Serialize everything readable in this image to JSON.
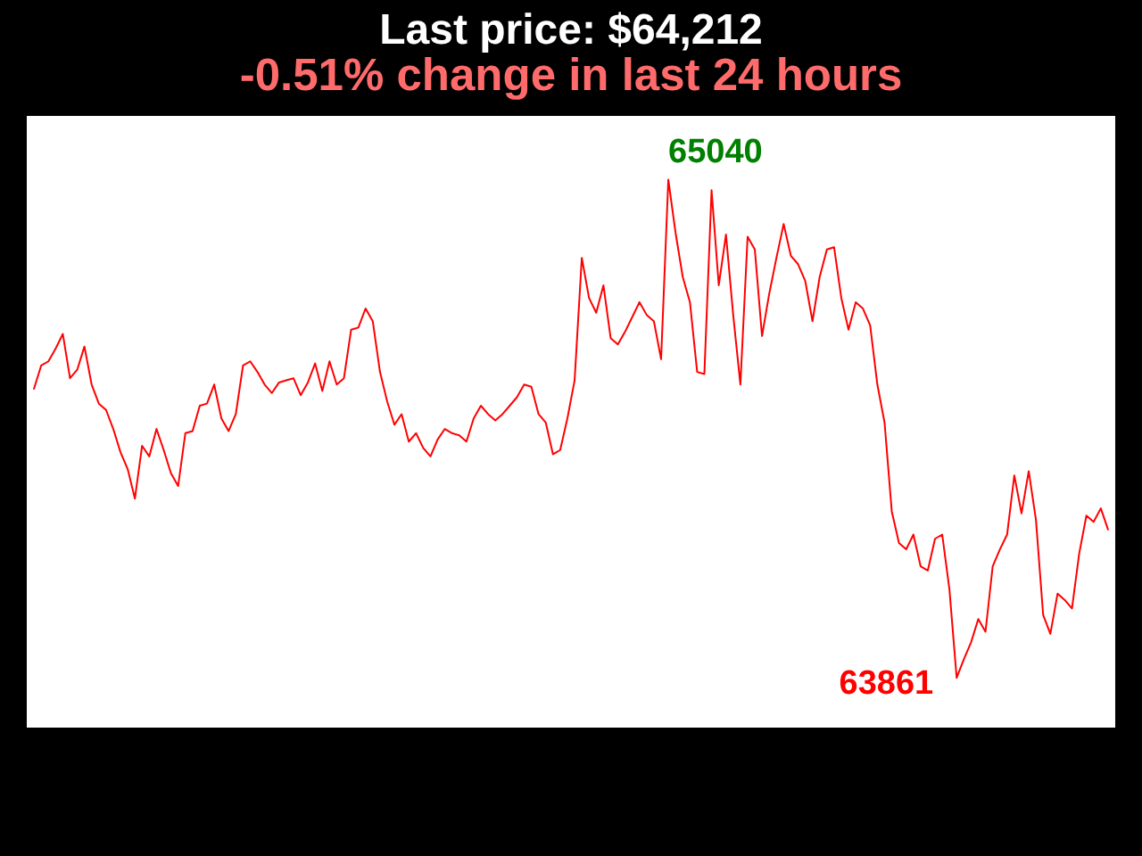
{
  "chart_data": {
    "type": "line",
    "title": "Last price: $64,212",
    "subtitle": "-0.51% change in last 24 hours",
    "categories": [
      null,
      null,
      null,
      null,
      null,
      null,
      null,
      null,
      null,
      null,
      null,
      null,
      null,
      null,
      null,
      null,
      null,
      null,
      null,
      null,
      null,
      null,
      null,
      null,
      null,
      null,
      null,
      null,
      null,
      null,
      null,
      null,
      null,
      null,
      null,
      null,
      null,
      null,
      null,
      null,
      null,
      null,
      null,
      null,
      null,
      null,
      null,
      null,
      null,
      null,
      null,
      null,
      null,
      null,
      null,
      null,
      null,
      null,
      null,
      null,
      null,
      null,
      null,
      null,
      null,
      null,
      null,
      null,
      null,
      null,
      null,
      null,
      null,
      null,
      null,
      null,
      null,
      null,
      null,
      null,
      null,
      null,
      null,
      null,
      null,
      null,
      null,
      null,
      null,
      null,
      null,
      null,
      null,
      null,
      null,
      null,
      null,
      null,
      null,
      null,
      null,
      null,
      null,
      null,
      null,
      null,
      null,
      null,
      null,
      null,
      null,
      null,
      null,
      null,
      null,
      null,
      null,
      null,
      null,
      null,
      null,
      null,
      null,
      null,
      null,
      null,
      null,
      null,
      null,
      null,
      null,
      null,
      null,
      null,
      null,
      null,
      null,
      null,
      null,
      null,
      null,
      null,
      null,
      null,
      null,
      null,
      null,
      null,
      null,
      null
    ],
    "values": [
      64545,
      64600,
      64610,
      64640,
      64675,
      64570,
      64590,
      64645,
      64555,
      64510,
      64495,
      64450,
      64395,
      64355,
      64285,
      64410,
      64385,
      64450,
      64400,
      64345,
      64315,
      64440,
      64445,
      64505,
      64510,
      64555,
      64475,
      64445,
      64485,
      64600,
      64610,
      64585,
      64555,
      64535,
      64560,
      64565,
      64570,
      64530,
      64560,
      64605,
      64540,
      64610,
      64555,
      64570,
      64685,
      64690,
      64735,
      64705,
      64585,
      64515,
      64460,
      64485,
      64420,
      64440,
      64405,
      64385,
      64425,
      64450,
      64440,
      64435,
      64420,
      64475,
      64505,
      64485,
      64470,
      64485,
      64505,
      64525,
      64555,
      64550,
      64485,
      64465,
      64390,
      64400,
      64475,
      64565,
      64855,
      64760,
      64725,
      64790,
      64665,
      64650,
      64680,
      64715,
      64750,
      64720,
      64705,
      64615,
      65040,
      64915,
      64810,
      64750,
      64585,
      64580,
      65015,
      64790,
      64910,
      64720,
      64555,
      64905,
      64875,
      64670,
      64770,
      64855,
      64935,
      64860,
      64840,
      64800,
      64705,
      64810,
      64875,
      64880,
      64760,
      64685,
      64750,
      64735,
      64695,
      64555,
      64465,
      64255,
      64180,
      64165,
      64200,
      64125,
      64115,
      64190,
      64200,
      64070,
      63861,
      63905,
      63945,
      64000,
      63970,
      64125,
      64165,
      64200,
      64340,
      64250,
      64350,
      64235,
      64010,
      63965,
      64060,
      64045,
      64025,
      64155,
      64245,
      64230,
      64262,
      64212
    ],
    "value_labels": [
      null,
      null,
      null,
      null,
      null,
      null,
      null,
      null,
      null,
      null,
      null,
      null,
      null,
      null,
      null,
      null,
      null,
      null,
      null,
      null,
      null,
      null,
      null,
      null,
      null,
      null,
      null,
      null,
      null,
      null,
      null,
      null,
      null,
      null,
      null,
      null,
      null,
      null,
      null,
      null,
      null,
      null,
      null,
      null,
      null,
      null,
      null,
      null,
      null,
      null,
      null,
      null,
      null,
      null,
      null,
      null,
      null,
      null,
      null,
      null,
      null,
      null,
      null,
      null,
      null,
      null,
      null,
      null,
      null,
      null,
      null,
      null,
      null,
      null,
      null,
      null,
      null,
      null,
      null,
      null,
      null,
      null,
      null,
      null,
      null,
      null,
      null,
      null,
      "65040",
      null,
      null,
      null,
      null,
      null,
      null,
      null,
      null,
      null,
      null,
      null,
      null,
      null,
      null,
      null,
      null,
      null,
      null,
      null,
      null,
      null,
      null,
      null,
      null,
      null,
      null,
      null,
      null,
      null,
      null,
      null,
      null,
      null,
      null,
      null,
      null,
      null,
      null,
      null,
      "63861",
      null,
      null,
      null,
      null,
      null,
      null,
      null,
      null,
      null,
      null,
      null,
      null,
      null,
      null,
      null,
      null,
      null,
      null,
      null,
      null,
      null
    ],
    "color": "#ff0000"
  }
}
